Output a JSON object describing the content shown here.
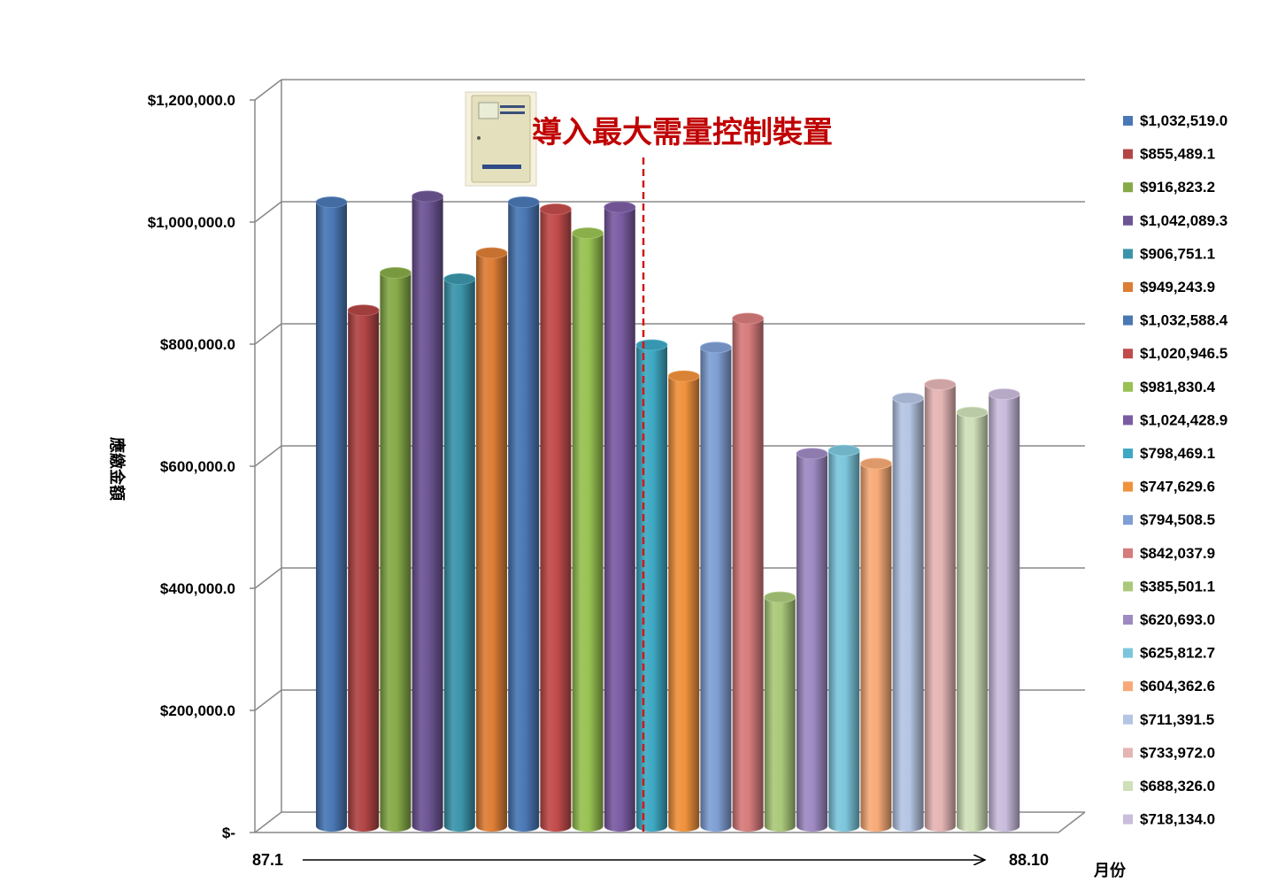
{
  "chart_data": {
    "type": "bar",
    "ylabel": "應繳金額",
    "xlabel": "月份",
    "ylim": [
      0,
      1200000
    ],
    "y_ticks": [
      {
        "value": 0,
        "label": "$-"
      },
      {
        "value": 200000,
        "label": "$200,000.0"
      },
      {
        "value": 400000,
        "label": "$400,000.0"
      },
      {
        "value": 600000,
        "label": "$600,000.0"
      },
      {
        "value": 800000,
        "label": "$800,000.0"
      },
      {
        "value": 1000000,
        "label": "$1,000,000.0"
      },
      {
        "value": 1200000,
        "label": "$1,200,000.0"
      }
    ],
    "x_start_label": "87.1",
    "x_end_label": "88.10",
    "grid": true,
    "legend_position": "right",
    "annotation": {
      "text": "導入最大需量控制裝置",
      "after_bar_index": 9,
      "color": "#c00000",
      "icon": "control-device-photo"
    },
    "values": [
      1032519.0,
      855489.1,
      916823.2,
      1042089.3,
      906751.1,
      949243.9,
      1032588.4,
      1020946.5,
      981830.4,
      1024428.9,
      798469.1,
      747629.6,
      794508.5,
      842037.9,
      385501.1,
      620693.0,
      625812.7,
      604362.6,
      711391.5,
      733972.0,
      688326.0,
      718134.0
    ],
    "labels": [
      "$1,032,519.0",
      "$855,489.1",
      "$916,823.2",
      "$1,042,089.3",
      "$906,751.1",
      "$949,243.9",
      "$1,032,588.4",
      "$1,020,946.5",
      "$981,830.4",
      "$1,024,428.9",
      "$798,469.1",
      "$747,629.6",
      "$794,508.5",
      "$842,037.9",
      "$385,501.1",
      "$620,693.0",
      "$625,812.7",
      "$604,362.6",
      "$711,391.5",
      "$733,972.0",
      "$688,326.0",
      "$718,134.0"
    ],
    "colors": [
      "#4a78b5",
      "#b24545",
      "#86aa48",
      "#6d5594",
      "#3b95aa",
      "#dd7e36",
      "#4a78b5",
      "#c24b4b",
      "#98c152",
      "#7b5ca3",
      "#3ea8c3",
      "#f0913c",
      "#7f9fd4",
      "#d67b7b",
      "#aac97a",
      "#9e8ac2",
      "#7cc6dc",
      "#f7aa77",
      "#b5c5e4",
      "#e5b5b5",
      "#cfe0b8",
      "#c9bcdc"
    ]
  }
}
